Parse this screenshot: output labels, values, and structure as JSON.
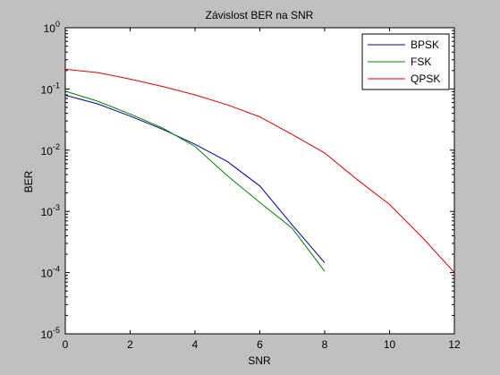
{
  "chart_data": {
    "type": "line",
    "title": "Závislost BER na SNR",
    "xlabel": "SNR",
    "ylabel": "BER",
    "x_scale": "linear",
    "y_scale": "log",
    "xlim": [
      0,
      12
    ],
    "ylim": [
      1e-05,
      1
    ],
    "x_ticks": [
      "0",
      "2",
      "4",
      "6",
      "8",
      "10",
      "12"
    ],
    "y_ticks": [
      {
        "base": "10",
        "exp": "0"
      },
      {
        "base": "10",
        "exp": "-1"
      },
      {
        "base": "10",
        "exp": "-2"
      },
      {
        "base": "10",
        "exp": "-3"
      },
      {
        "base": "10",
        "exp": "-4"
      },
      {
        "base": "10",
        "exp": "-5"
      }
    ],
    "grid": false,
    "legend_position": "top-right",
    "background_color": "#c0c0c0",
    "plot_background_color": "#ffffff",
    "series": [
      {
        "name": "BPSK",
        "color": "#0000a0",
        "x": [
          0,
          1,
          2,
          3,
          4,
          5,
          6,
          7,
          8
        ],
        "y": [
          0.079,
          0.057,
          0.036,
          0.022,
          0.0125,
          0.0065,
          0.0026,
          0.0006,
          0.000145
        ]
      },
      {
        "name": "FSK",
        "color": "#008000",
        "x": [
          0,
          1,
          2,
          3,
          4,
          5,
          6,
          7,
          8
        ],
        "y": [
          0.092,
          0.063,
          0.039,
          0.023,
          0.0115,
          0.0038,
          0.0014,
          0.00053,
          0.000105
        ]
      },
      {
        "name": "QPSK",
        "color": "#e00000",
        "x": [
          0,
          1,
          2,
          3,
          4,
          5,
          6,
          7,
          8,
          9,
          10,
          11,
          12
        ],
        "y": [
          0.21,
          0.185,
          0.145,
          0.11,
          0.08,
          0.055,
          0.035,
          0.018,
          0.009,
          0.0033,
          0.0013,
          0.00038,
          0.0001
        ]
      }
    ]
  }
}
